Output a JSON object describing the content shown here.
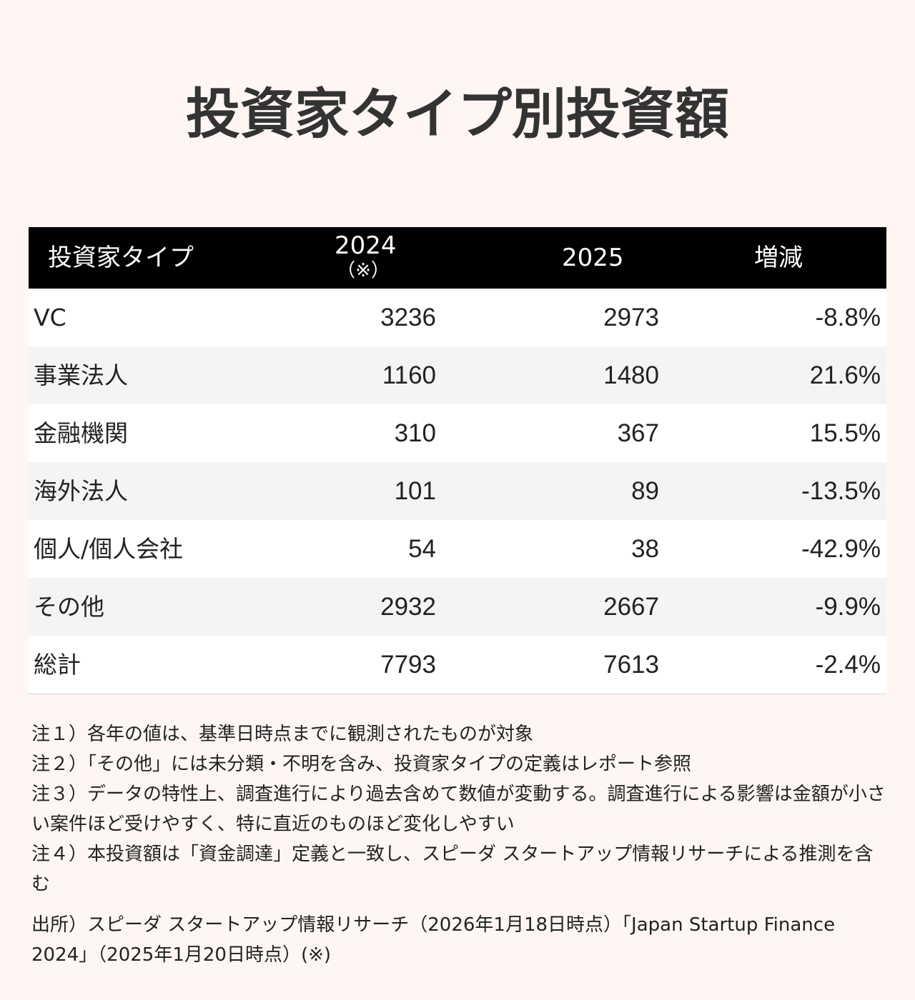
{
  "title": "投資家タイプ別投資額",
  "table": {
    "headers": {
      "type": "投資家タイプ",
      "y2024": "2024",
      "y2024_note": "（※）",
      "y2025": "2025",
      "change": "増減"
    },
    "rows": [
      {
        "type": "VC",
        "v2024": "3236",
        "v2025": "2973",
        "change": "-8.8%"
      },
      {
        "type": "事業法人",
        "v2024": "1160",
        "v2025": "1480",
        "change": "21.6%"
      },
      {
        "type": "金融機関",
        "v2024": "310",
        "v2025": "367",
        "change": "15.5%"
      },
      {
        "type": "海外法人",
        "v2024": "101",
        "v2025": "89",
        "change": "-13.5%"
      },
      {
        "type": "個人/個人会社",
        "v2024": "54",
        "v2025": "38",
        "change": "-42.9%"
      },
      {
        "type": "その他",
        "v2024": "2932",
        "v2025": "2667",
        "change": "-9.9%"
      },
      {
        "type": "総計",
        "v2024": "7793",
        "v2025": "7613",
        "change": "-2.4%"
      }
    ]
  },
  "notes": [
    "注１）各年の値は、基準日時点までに観測されたものが対象",
    "注２）「その他」には未分類・不明を含み、投資家タイプの定義はレポート参照",
    "注３）データの特性上、調査進行により過去含めて数値が変動する。調査進行による影響は金額が小さい案件ほど受けやすく、特に直近のものほど変化しやすい",
    "注４）本投資額は「資金調達」定義と一致し、スピーダ スタートアップ情報リサーチによる推測を含む"
  ],
  "source": "出所）スピーダ スタートアップ情報リサーチ（2026年1月18日時点）「Japan Startup Finance 2024」（2025年1月20日時点）(※)"
}
